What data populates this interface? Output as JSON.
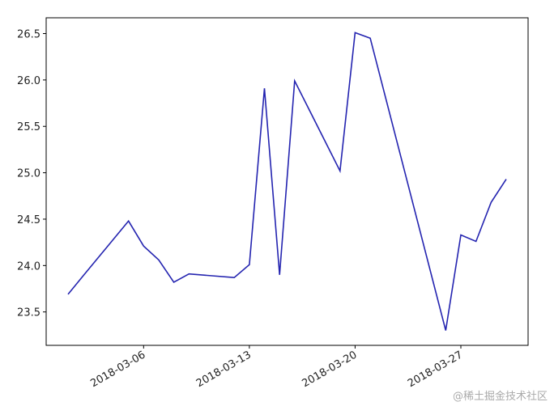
{
  "chart_data": {
    "type": "line",
    "x": [
      "2018-03-01",
      "2018-03-02",
      "2018-03-05",
      "2018-03-06",
      "2018-03-07",
      "2018-03-08",
      "2018-03-09",
      "2018-03-12",
      "2018-03-13",
      "2018-03-14",
      "2018-03-15",
      "2018-03-16",
      "2018-03-19",
      "2018-03-20",
      "2018-03-21",
      "2018-03-26",
      "2018-03-27",
      "2018-03-28",
      "2018-03-29",
      "2018-03-30"
    ],
    "series": [
      {
        "color": "#2424b0",
        "values": [
          23.69,
          23.89,
          24.48,
          24.21,
          24.06,
          23.82,
          23.91,
          23.87,
          24.01,
          25.91,
          23.9,
          25.99,
          25.02,
          26.51,
          26.45,
          23.3,
          24.33,
          24.26,
          24.68,
          24.93
        ]
      }
    ],
    "xlim": [
      "2018-02-27T13:12:00Z",
      "2018-03-31T10:48:00Z"
    ],
    "xticks": [
      "2018-03-06",
      "2018-03-13",
      "2018-03-20",
      "2018-03-27"
    ],
    "ylim": [
      23.14,
      26.67
    ],
    "yticks": [
      23.5,
      {
        "value": 24,
        "label": "24.0"
      },
      24.5,
      {
        "value": 25,
        "label": "25.0"
      },
      25.5,
      {
        "value": 26,
        "label": "26.0"
      },
      26.5
    ],
    "watermark": "@稀土掘金技术社区"
  }
}
